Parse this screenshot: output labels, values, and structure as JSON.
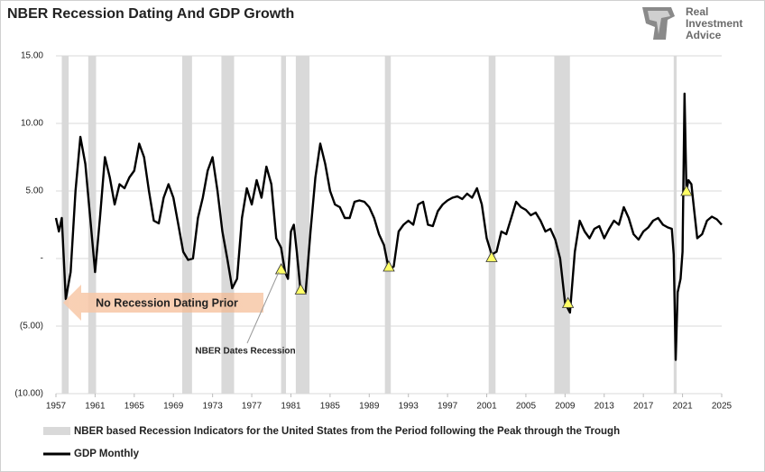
{
  "chart_data": {
    "type": "line",
    "title": "NBER Recession Dating And GDP Growth",
    "logo": [
      "Real",
      "Investment",
      "Advice"
    ],
    "xlim": [
      1957,
      2025
    ],
    "xticks": [
      1957,
      1961,
      1965,
      1969,
      1973,
      1977,
      1981,
      1985,
      1989,
      1993,
      1997,
      2001,
      2005,
      2009,
      2013,
      2017,
      2021,
      2025
    ],
    "ylim": [
      -10,
      15
    ],
    "yticks": [
      {
        "value": -10,
        "label": "(10.00)"
      },
      {
        "value": -5,
        "label": "(5.00)"
      },
      {
        "value": 0,
        "label": "-"
      },
      {
        "value": 5,
        "label": "5.00"
      },
      {
        "value": 10,
        "label": "10.00"
      },
      {
        "value": 15,
        "label": "15.00"
      }
    ],
    "grid": true,
    "recessions": {
      "name": "NBER based Recession Indicators for the United States from the Period following the Peak through the Trough",
      "color": "#d9d9d9",
      "ranges": [
        [
          1957.6,
          1958.3
        ],
        [
          1960.3,
          1961.1
        ],
        [
          1969.9,
          1970.9
        ],
        [
          1973.9,
          1975.2
        ],
        [
          1980.0,
          1980.5
        ],
        [
          1981.5,
          1982.9
        ],
        [
          1990.6,
          1991.2
        ],
        [
          2001.2,
          2001.9
        ],
        [
          2007.9,
          2009.5
        ],
        [
          2020.1,
          2020.4
        ]
      ]
    },
    "dated_markers": {
      "color": "#ffff66",
      "x": [
        1980.0,
        1982.0,
        1991.0,
        2001.5,
        2009.3,
        2021.4
      ],
      "values": [
        -0.8,
        -2.3,
        -0.6,
        0.1,
        -3.3,
        5
      ]
    },
    "annotations": [
      "No Recession Dating Prior",
      "NBER Dates Recession"
    ],
    "series": [
      {
        "name": "GDP Monthly",
        "color": "#000000",
        "x": [
          1957.0,
          1957.3,
          1957.6,
          1958.0,
          1958.5,
          1959.0,
          1959.5,
          1960.0,
          1960.5,
          1961.0,
          1961.5,
          1962.0,
          1962.5,
          1963.0,
          1963.5,
          1964.0,
          1964.5,
          1965.0,
          1965.5,
          1966.0,
          1966.5,
          1967.0,
          1967.5,
          1968.0,
          1968.5,
          1969.0,
          1969.5,
          1970.0,
          1970.5,
          1971.0,
          1971.5,
          1972.0,
          1972.5,
          1973.0,
          1973.5,
          1974.0,
          1974.5,
          1975.0,
          1975.5,
          1976.0,
          1976.5,
          1977.0,
          1977.5,
          1978.0,
          1978.5,
          1979.0,
          1979.5,
          1980.0,
          1980.4,
          1980.7,
          1981.0,
          1981.3,
          1981.6,
          1982.0,
          1982.5,
          1983.0,
          1983.5,
          1984.0,
          1984.5,
          1985.0,
          1985.5,
          1986.0,
          1986.5,
          1987.0,
          1987.5,
          1988.0,
          1988.5,
          1989.0,
          1989.5,
          1990.0,
          1990.5,
          1991.0,
          1991.5,
          1992.0,
          1992.5,
          1993.0,
          1993.5,
          1994.0,
          1994.5,
          1995.0,
          1995.5,
          1996.0,
          1996.5,
          1997.0,
          1997.5,
          1998.0,
          1998.5,
          1999.0,
          1999.5,
          2000.0,
          2000.5,
          2001.0,
          2001.5,
          2002.0,
          2002.5,
          2003.0,
          2003.5,
          2004.0,
          2004.5,
          2005.0,
          2005.5,
          2006.0,
          2006.5,
          2007.0,
          2007.5,
          2008.0,
          2008.5,
          2009.0,
          2009.5,
          2010.0,
          2010.5,
          2011.0,
          2011.5,
          2012.0,
          2012.5,
          2013.0,
          2013.5,
          2014.0,
          2014.5,
          2015.0,
          2015.5,
          2016.0,
          2016.5,
          2017.0,
          2017.5,
          2018.0,
          2018.5,
          2019.0,
          2019.5,
          2019.9,
          2020.1,
          2020.3,
          2020.5,
          2020.8,
          2021.0,
          2021.2,
          2021.4,
          2021.6,
          2021.9,
          2022.2,
          2022.5,
          2023.0,
          2023.5,
          2024.0,
          2024.5,
          2025.0
        ],
        "values": [
          3,
          2,
          3,
          -3,
          -1,
          5,
          9,
          7,
          3,
          -1,
          3,
          7.5,
          6,
          4,
          5.5,
          5.2,
          6,
          6.5,
          8.5,
          7.5,
          5,
          2.8,
          2.6,
          4.5,
          5.5,
          4.5,
          2.5,
          0.5,
          -0.1,
          0,
          3,
          4.5,
          6.5,
          7.5,
          5,
          2,
          0,
          -2.2,
          -1.5,
          3,
          5.2,
          4,
          5.8,
          4.5,
          6.8,
          5.5,
          1.5,
          0.8,
          -1,
          -1.5,
          2,
          2.5,
          0.5,
          -2.5,
          -2.5,
          2,
          6,
          8.5,
          7,
          5,
          4,
          3.8,
          3,
          3,
          4.2,
          4.3,
          4.2,
          3.8,
          3,
          1.8,
          1,
          -0.8,
          -0.6,
          2,
          2.5,
          2.8,
          2.5,
          4,
          4.2,
          2.5,
          2.4,
          3.5,
          4,
          4.3,
          4.5,
          4.6,
          4.4,
          4.8,
          4.5,
          5.2,
          4,
          1.5,
          0.3,
          0.5,
          2,
          1.8,
          3,
          4.2,
          3.8,
          3.6,
          3.2,
          3.4,
          2.8,
          2,
          2.2,
          1.4,
          0,
          -3.3,
          -4,
          0.5,
          2.8,
          2,
          1.5,
          2.2,
          2.4,
          1.5,
          2.2,
          2.8,
          2.5,
          3.8,
          3,
          1.8,
          1.4,
          2,
          2.3,
          2.8,
          3,
          2.5,
          2.3,
          2.2,
          0.3,
          -7.5,
          -2.5,
          -1.5,
          0.5,
          12.2,
          5,
          5.8,
          5.5,
          3.5,
          1.5,
          1.8,
          2.8,
          3.1,
          2.9,
          2.5
        ]
      }
    ]
  }
}
